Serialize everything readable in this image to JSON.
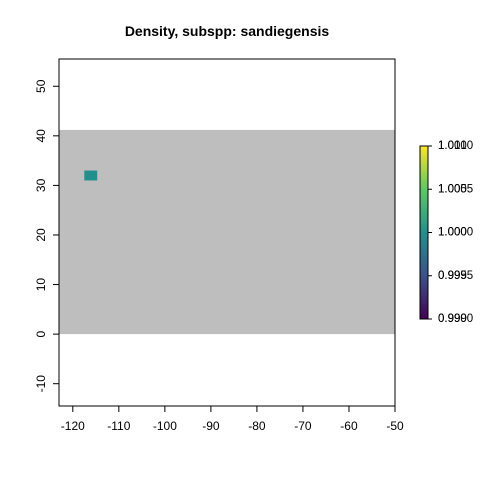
{
  "chart_data": {
    "type": "heatmap",
    "title": "Density, subspp: sandiegensis",
    "xlabel": "",
    "ylabel": "",
    "xlim": [
      -123,
      -50
    ],
    "ylim": [
      -14.5,
      55.5
    ],
    "x_ticks": [
      -120,
      -110,
      -100,
      -90,
      -80,
      -70,
      -60,
      -50
    ],
    "y_ticks": [
      -10,
      0,
      10,
      20,
      30,
      40,
      50
    ],
    "grid": false,
    "raster_extent": {
      "x": [
        -123,
        -50
      ],
      "y": [
        0,
        41.2
      ]
    },
    "nodata_color": "#bebebe",
    "cells": [
      {
        "x": [
          -117.5,
          -114.7
        ],
        "y": [
          31,
          33
        ],
        "value": 1.0
      }
    ],
    "colorscale": {
      "name": "viridis",
      "min": 0.99,
      "max": 1.01,
      "colors": [
        "#440154",
        "#3b528b",
        "#21908c",
        "#5dc963",
        "#fde725"
      ],
      "tick_values": [
        0.99,
        0.995,
        1.0,
        1.005,
        1.01
      ],
      "tick_labels": [
        [
          "0.990",
          "0.9990"
        ],
        [
          "0.995",
          "0.9995"
        ],
        [
          "1.000",
          "1.0000"
        ],
        [
          "1.005",
          "1.0005"
        ],
        [
          "1.010",
          "1.0010"
        ]
      ],
      "placement": "right"
    }
  }
}
